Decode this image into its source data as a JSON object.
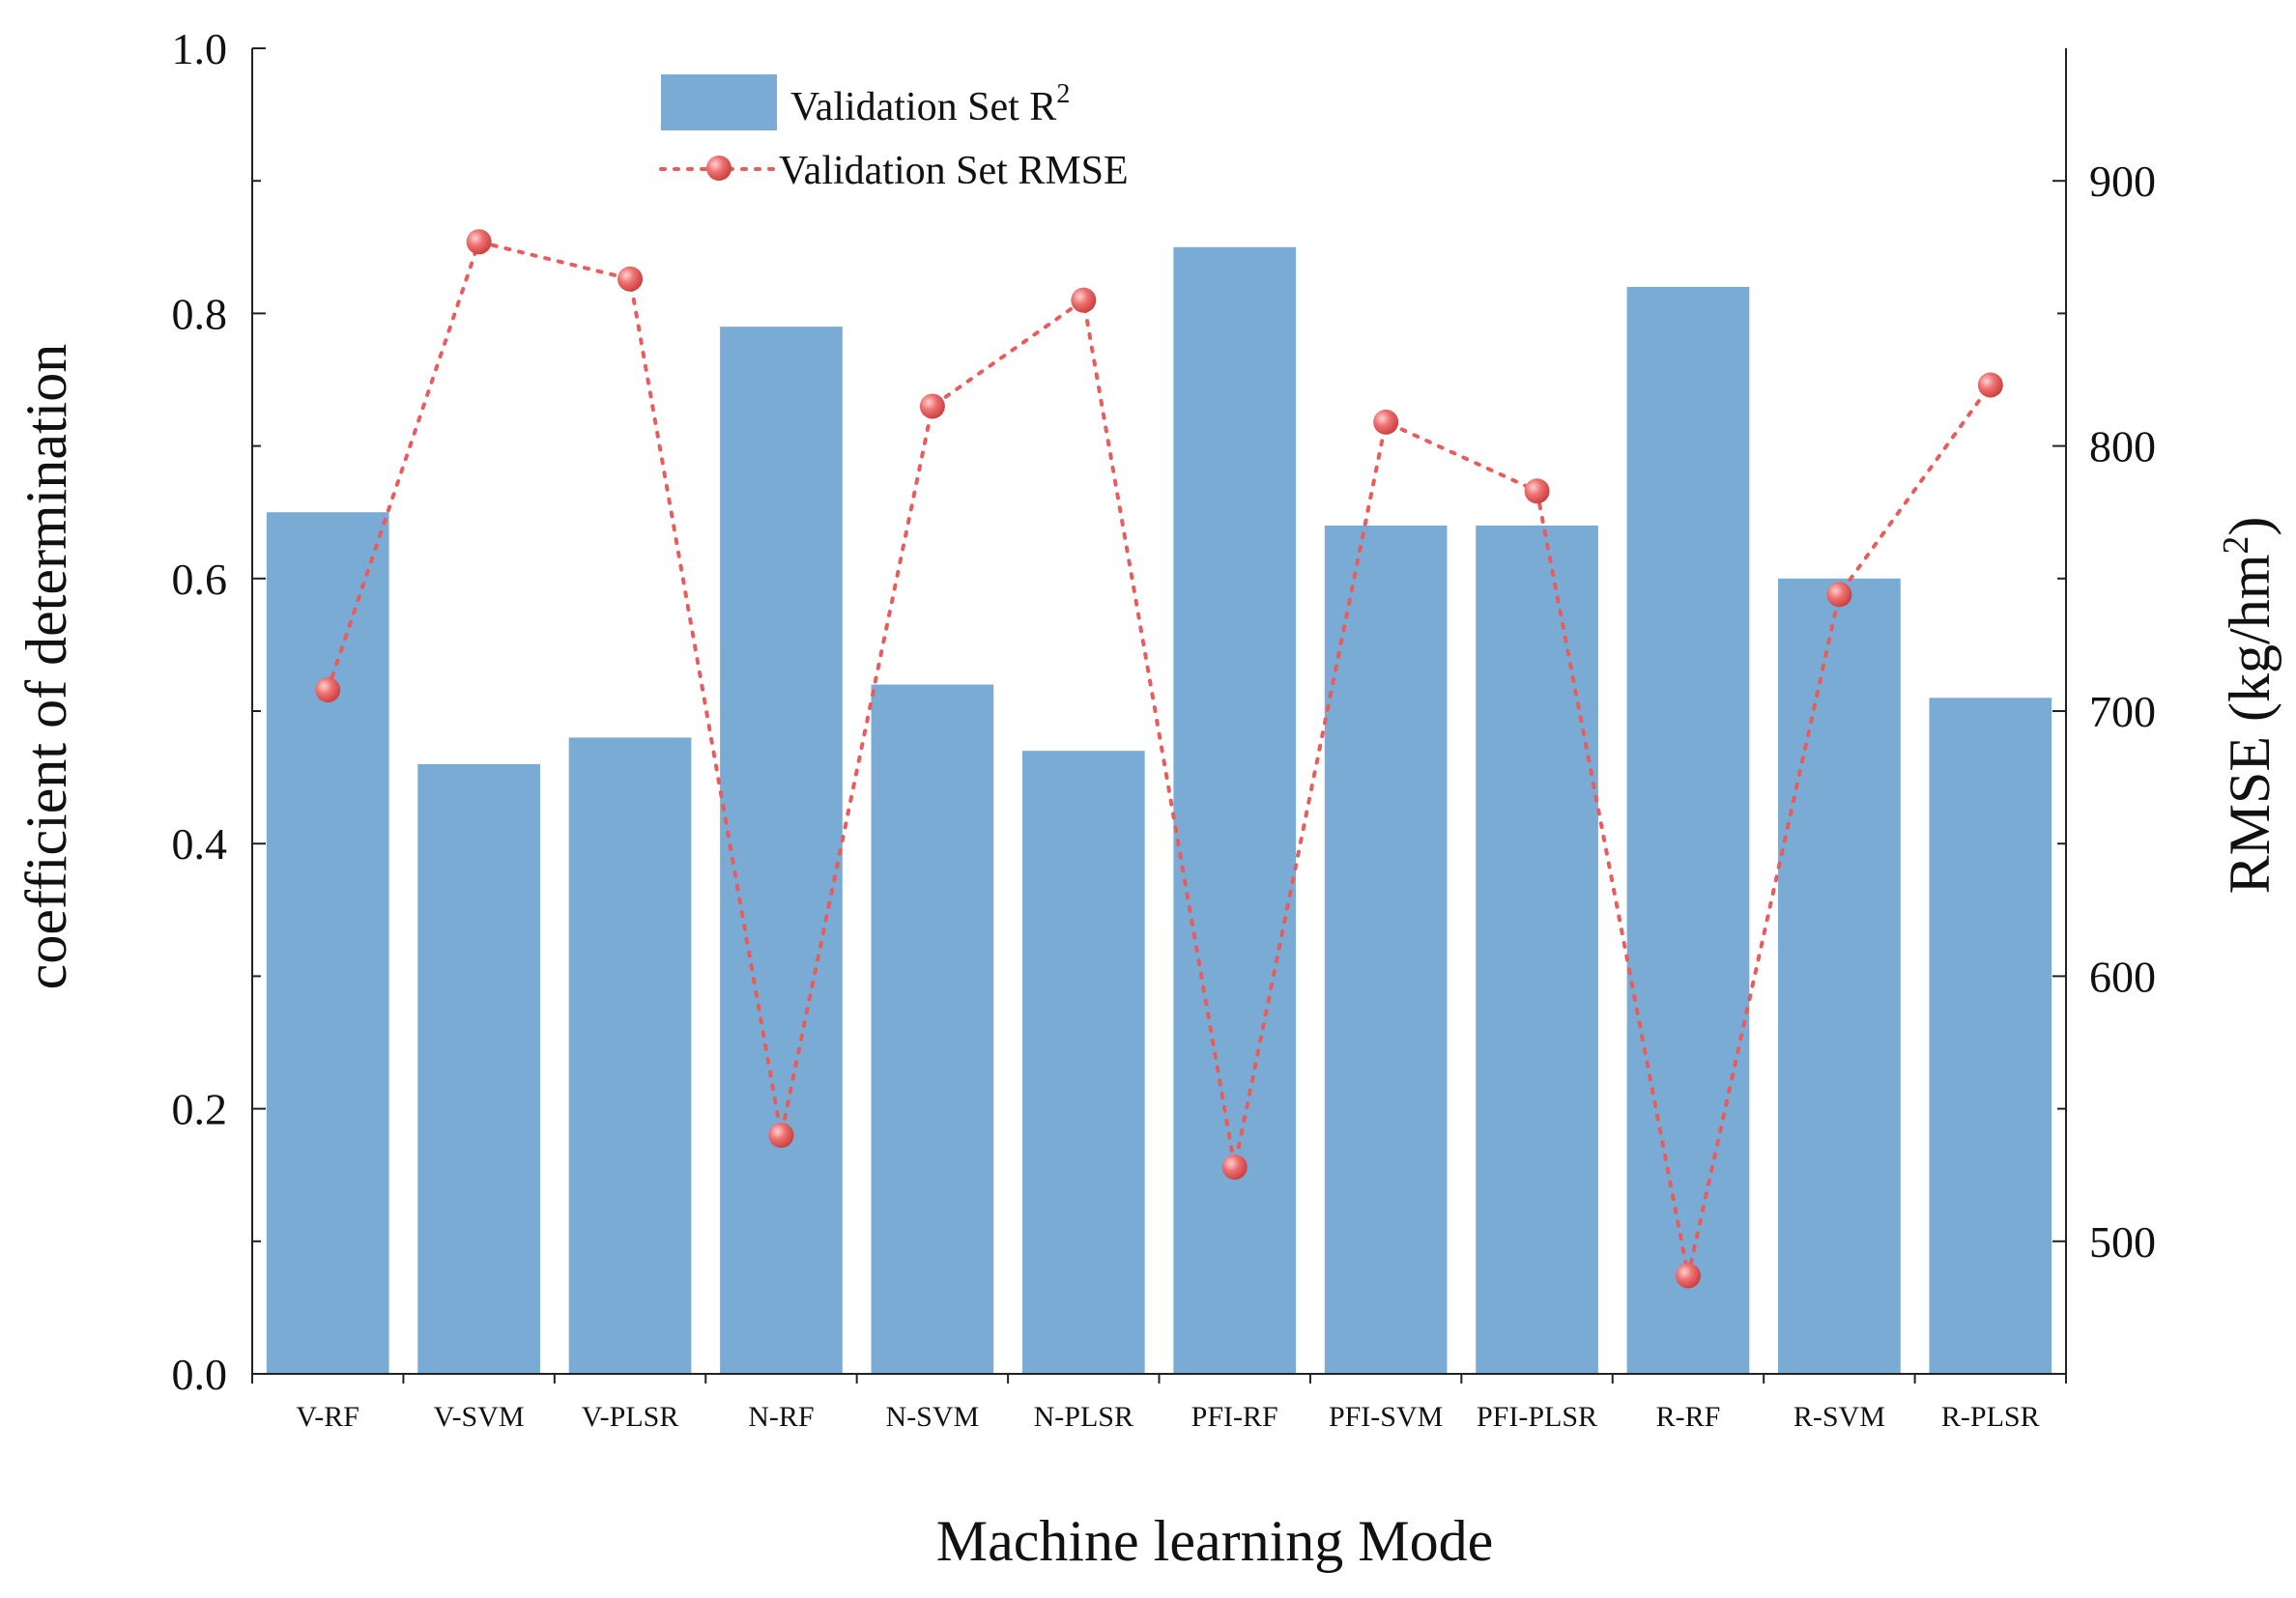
{
  "chart_data": {
    "type": "bar",
    "title": "",
    "xlabel": "Machine learning Mode",
    "ylabel": "coefficient of determination",
    "y2label": "RMSE (kg/hm",
    "y2label_sup": "2",
    "y2label_close": ")",
    "categories": [
      "V-RF",
      "V-SVM",
      "V-PLSR",
      "N-RF",
      "N-SVM",
      "N-PLSR",
      "PFI-RF",
      "PFI-SVM",
      "PFI-PLSR",
      "R-RF",
      "R-SVM",
      "R-PLSR"
    ],
    "ylim": [
      0.0,
      1.0
    ],
    "yticks": [
      "0.0",
      "0.2",
      "0.4",
      "0.6",
      "0.8",
      "1.0"
    ],
    "y2lim": [
      450,
      950
    ],
    "y2ticks": [
      "500",
      "600",
      "700",
      "800",
      "900"
    ],
    "series": [
      {
        "name": "Validation Set R",
        "name_sup": "2",
        "kind": "bar",
        "axis": "left",
        "color": "#7aabd4",
        "values": [
          0.65,
          0.46,
          0.48,
          0.79,
          0.52,
          0.47,
          0.85,
          0.64,
          0.64,
          0.82,
          0.6,
          0.51
        ]
      },
      {
        "name": "Validation Set RMSE",
        "kind": "line",
        "axis": "right",
        "color": "#e85c5c",
        "values": [
          708,
          877,
          863,
          540,
          815,
          855,
          528,
          809,
          783,
          487,
          744,
          823
        ]
      }
    ],
    "legend": "top-center"
  }
}
